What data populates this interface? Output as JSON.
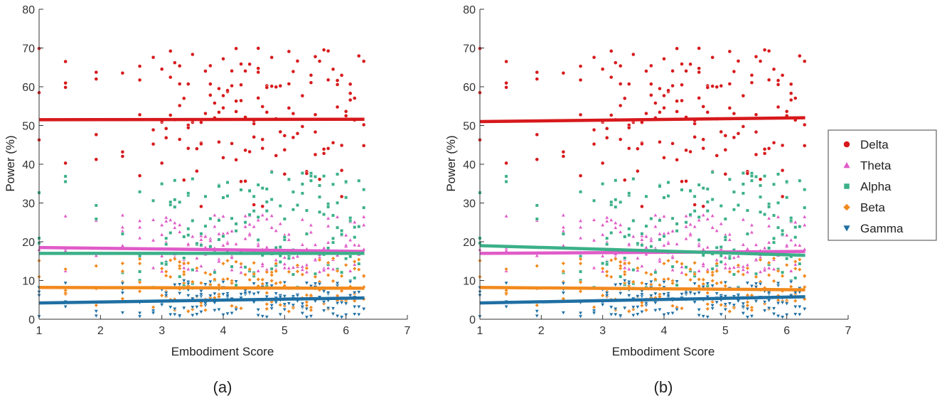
{
  "chart_data": [
    {
      "type": "scatter",
      "panel_label": "(a)",
      "xlabel": "Embodiment Score",
      "ylabel": "Power (%)",
      "xlim": [
        1,
        7
      ],
      "ylim": [
        0,
        80
      ],
      "xticks": [
        "1",
        "2",
        "3",
        "4",
        "5",
        "6",
        "7"
      ],
      "yticks": [
        "0",
        "10",
        "20",
        "30",
        "40",
        "50",
        "60",
        "70",
        "80"
      ],
      "grid": false,
      "series": [
        {
          "name": "Delta",
          "color": "#d7191c",
          "marker": "circle",
          "fit": [
            [
              1,
              51.5
            ],
            [
              6.3,
              51.6
            ]
          ]
        },
        {
          "name": "Theta",
          "color": "#e05bc8",
          "marker": "triangle-up",
          "fit": [
            [
              1,
              18.5
            ],
            [
              6.3,
              17.5
            ]
          ]
        },
        {
          "name": "Alpha",
          "color": "#3bb089",
          "marker": "square",
          "fit": [
            [
              1,
              17.0
            ],
            [
              6.3,
              17.0
            ]
          ]
        },
        {
          "name": "Beta",
          "color": "#f28a1e",
          "marker": "diamond",
          "fit": [
            [
              1,
              8.2
            ],
            [
              6.3,
              8.0
            ]
          ]
        },
        {
          "name": "Gamma",
          "color": "#1f6fa3",
          "marker": "triangle-down",
          "fit": [
            [
              1,
              4.2
            ],
            [
              6.3,
              5.5
            ]
          ]
        }
      ]
    },
    {
      "type": "scatter",
      "panel_label": "(b)",
      "xlabel": "Embodiment Score",
      "ylabel": "Power (%)",
      "xlim": [
        1,
        7
      ],
      "ylim": [
        0,
        80
      ],
      "xticks": [
        "1",
        "2",
        "3",
        "4",
        "5",
        "6",
        "7"
      ],
      "yticks": [
        "0",
        "10",
        "20",
        "30",
        "40",
        "50",
        "60",
        "70",
        "80"
      ],
      "grid": false,
      "series": [
        {
          "name": "Delta",
          "color": "#d7191c",
          "marker": "circle",
          "fit": [
            [
              1,
              51.0
            ],
            [
              6.3,
              52.0
            ]
          ]
        },
        {
          "name": "Theta",
          "color": "#e05bc8",
          "marker": "triangle-up",
          "fit": [
            [
              1,
              17.0
            ],
            [
              6.3,
              17.5
            ]
          ]
        },
        {
          "name": "Alpha",
          "color": "#3bb089",
          "marker": "square",
          "fit": [
            [
              1,
              19.0
            ],
            [
              6.3,
              16.5
            ]
          ]
        },
        {
          "name": "Beta",
          "color": "#f28a1e",
          "marker": "diamond",
          "fit": [
            [
              1,
              8.2
            ],
            [
              6.3,
              7.6
            ]
          ]
        },
        {
          "name": "Gamma",
          "color": "#1f6fa3",
          "marker": "triangle-down",
          "fit": [
            [
              1,
              4.2
            ],
            [
              6.3,
              5.8
            ]
          ]
        }
      ]
    }
  ],
  "legend": {
    "placement": "right",
    "entries": [
      {
        "label": "Delta",
        "color": "#d7191c",
        "marker": "circle"
      },
      {
        "label": "Theta",
        "color": "#e05bc8",
        "marker": "triangle-up"
      },
      {
        "label": "Alpha",
        "color": "#3bb089",
        "marker": "square"
      },
      {
        "label": "Beta",
        "color": "#f28a1e",
        "marker": "diamond"
      },
      {
        "label": "Gamma",
        "color": "#1f6fa3",
        "marker": "triangle-down"
      }
    ]
  },
  "scatter_x_levels": [
    1.0,
    1.43,
    1.93,
    2.36,
    2.64,
    2.86,
    3.0,
    3.07,
    3.14,
    3.21,
    3.29,
    3.36,
    3.43,
    3.5,
    3.57,
    3.64,
    3.71,
    3.79,
    3.86,
    3.93,
    4.0,
    4.07,
    4.14,
    4.21,
    4.29,
    4.36,
    4.43,
    4.5,
    4.57,
    4.64,
    4.71,
    4.79,
    4.86,
    4.93,
    5.0,
    5.07,
    5.14,
    5.21,
    5.29,
    5.36,
    5.43,
    5.5,
    5.57,
    5.64,
    5.71,
    5.79,
    5.86,
    5.93,
    6.0,
    6.07,
    6.14,
    6.21,
    6.29
  ],
  "band_ranges": {
    "Delta": [
      28,
      70
    ],
    "Theta": [
      12,
      27
    ],
    "Alpha": [
      8,
      38
    ],
    "Beta": [
      2,
      16
    ],
    "Gamma": [
      0.5,
      10
    ]
  }
}
